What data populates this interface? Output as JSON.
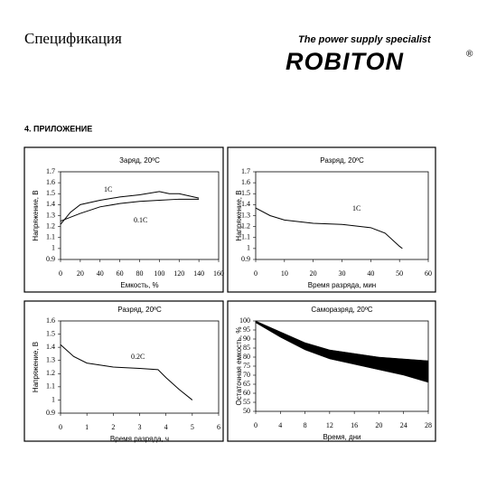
{
  "header": {
    "title": "Спецификация",
    "slogan": "The power supply specialist",
    "brand": "ROBITON",
    "mark": "®"
  },
  "section": "4. ПРИЛОЖЕНИЕ",
  "chart_data": [
    {
      "type": "line",
      "title": "Заряд, 20ºC",
      "xlabel": "Емкость, %",
      "ylabel": "Напряжение, В",
      "xlim": [
        0,
        160
      ],
      "xticks": [
        0,
        20,
        40,
        60,
        80,
        100,
        120,
        140,
        160
      ],
      "ylim": [
        0.9,
        1.7
      ],
      "yticks": [
        0.9,
        1,
        1.1,
        1.2,
        1.3,
        1.4,
        1.5,
        1.6,
        1.7
      ],
      "series": [
        {
          "name": "1C",
          "color": "#000000",
          "x": [
            0,
            10,
            20,
            40,
            60,
            80,
            100,
            110,
            120,
            140
          ],
          "values": [
            1.22,
            1.33,
            1.4,
            1.44,
            1.47,
            1.49,
            1.52,
            1.5,
            1.5,
            1.46
          ]
        },
        {
          "name": "0.1C",
          "color": "#000000",
          "x": [
            0,
            20,
            40,
            60,
            80,
            100,
            120,
            140
          ],
          "values": [
            1.25,
            1.32,
            1.38,
            1.41,
            1.43,
            1.44,
            1.45,
            1.45
          ]
        }
      ]
    },
    {
      "type": "line",
      "title": "Разряд, 20ºC",
      "xlabel": "Время разряда, мин",
      "ylabel": "Напряжение, В",
      "xlim": [
        0,
        60
      ],
      "xticks": [
        0,
        10,
        20,
        30,
        40,
        50,
        60
      ],
      "ylim": [
        0.9,
        1.7
      ],
      "yticks": [
        0.9,
        1,
        1.1,
        1.2,
        1.3,
        1.4,
        1.5,
        1.6,
        1.7
      ],
      "series": [
        {
          "name": "1C",
          "color": "#000000",
          "x": [
            0,
            5,
            10,
            20,
            30,
            40,
            45,
            50,
            51
          ],
          "values": [
            1.37,
            1.3,
            1.26,
            1.23,
            1.22,
            1.19,
            1.14,
            1.02,
            1.0
          ]
        }
      ]
    },
    {
      "type": "line",
      "title": "Разряд, 20ºC",
      "xlabel": "Время разряда, ч",
      "ylabel": "Напряжение, В",
      "xlim": [
        0,
        6
      ],
      "xticks": [
        0,
        1,
        2,
        3,
        4,
        5,
        6
      ],
      "ylim": [
        0.9,
        1.6
      ],
      "yticks": [
        0.9,
        1,
        1.1,
        1.2,
        1.3,
        1.4,
        1.5,
        1.6
      ],
      "series": [
        {
          "name": "0.2C",
          "color": "#000000",
          "x": [
            0,
            0.5,
            1,
            2,
            3,
            3.7,
            4,
            4.5,
            5
          ],
          "values": [
            1.42,
            1.33,
            1.28,
            1.25,
            1.24,
            1.23,
            1.17,
            1.08,
            1.0
          ]
        }
      ]
    },
    {
      "type": "band",
      "title": "Саморазряд, 20ºC",
      "xlabel": "Время, дни",
      "ylabel": "Остаточная емкость, %",
      "xlim": [
        0,
        28
      ],
      "xticks": [
        0,
        4,
        8,
        12,
        16,
        20,
        24,
        28
      ],
      "ylim": [
        50,
        100
      ],
      "yticks": [
        50,
        55,
        60,
        65,
        70,
        75,
        80,
        85,
        90,
        95,
        100
      ],
      "color": "#000000",
      "series": [
        {
          "x": [
            0,
            4,
            8,
            12,
            16,
            20,
            24,
            28
          ],
          "values": [
            100,
            94,
            88,
            84,
            82,
            80,
            79,
            78
          ]
        },
        {
          "x": [
            0,
            4,
            8,
            12,
            16,
            20,
            24,
            28
          ],
          "values": [
            99,
            91,
            84,
            79,
            76,
            73,
            70,
            66
          ]
        }
      ]
    }
  ]
}
